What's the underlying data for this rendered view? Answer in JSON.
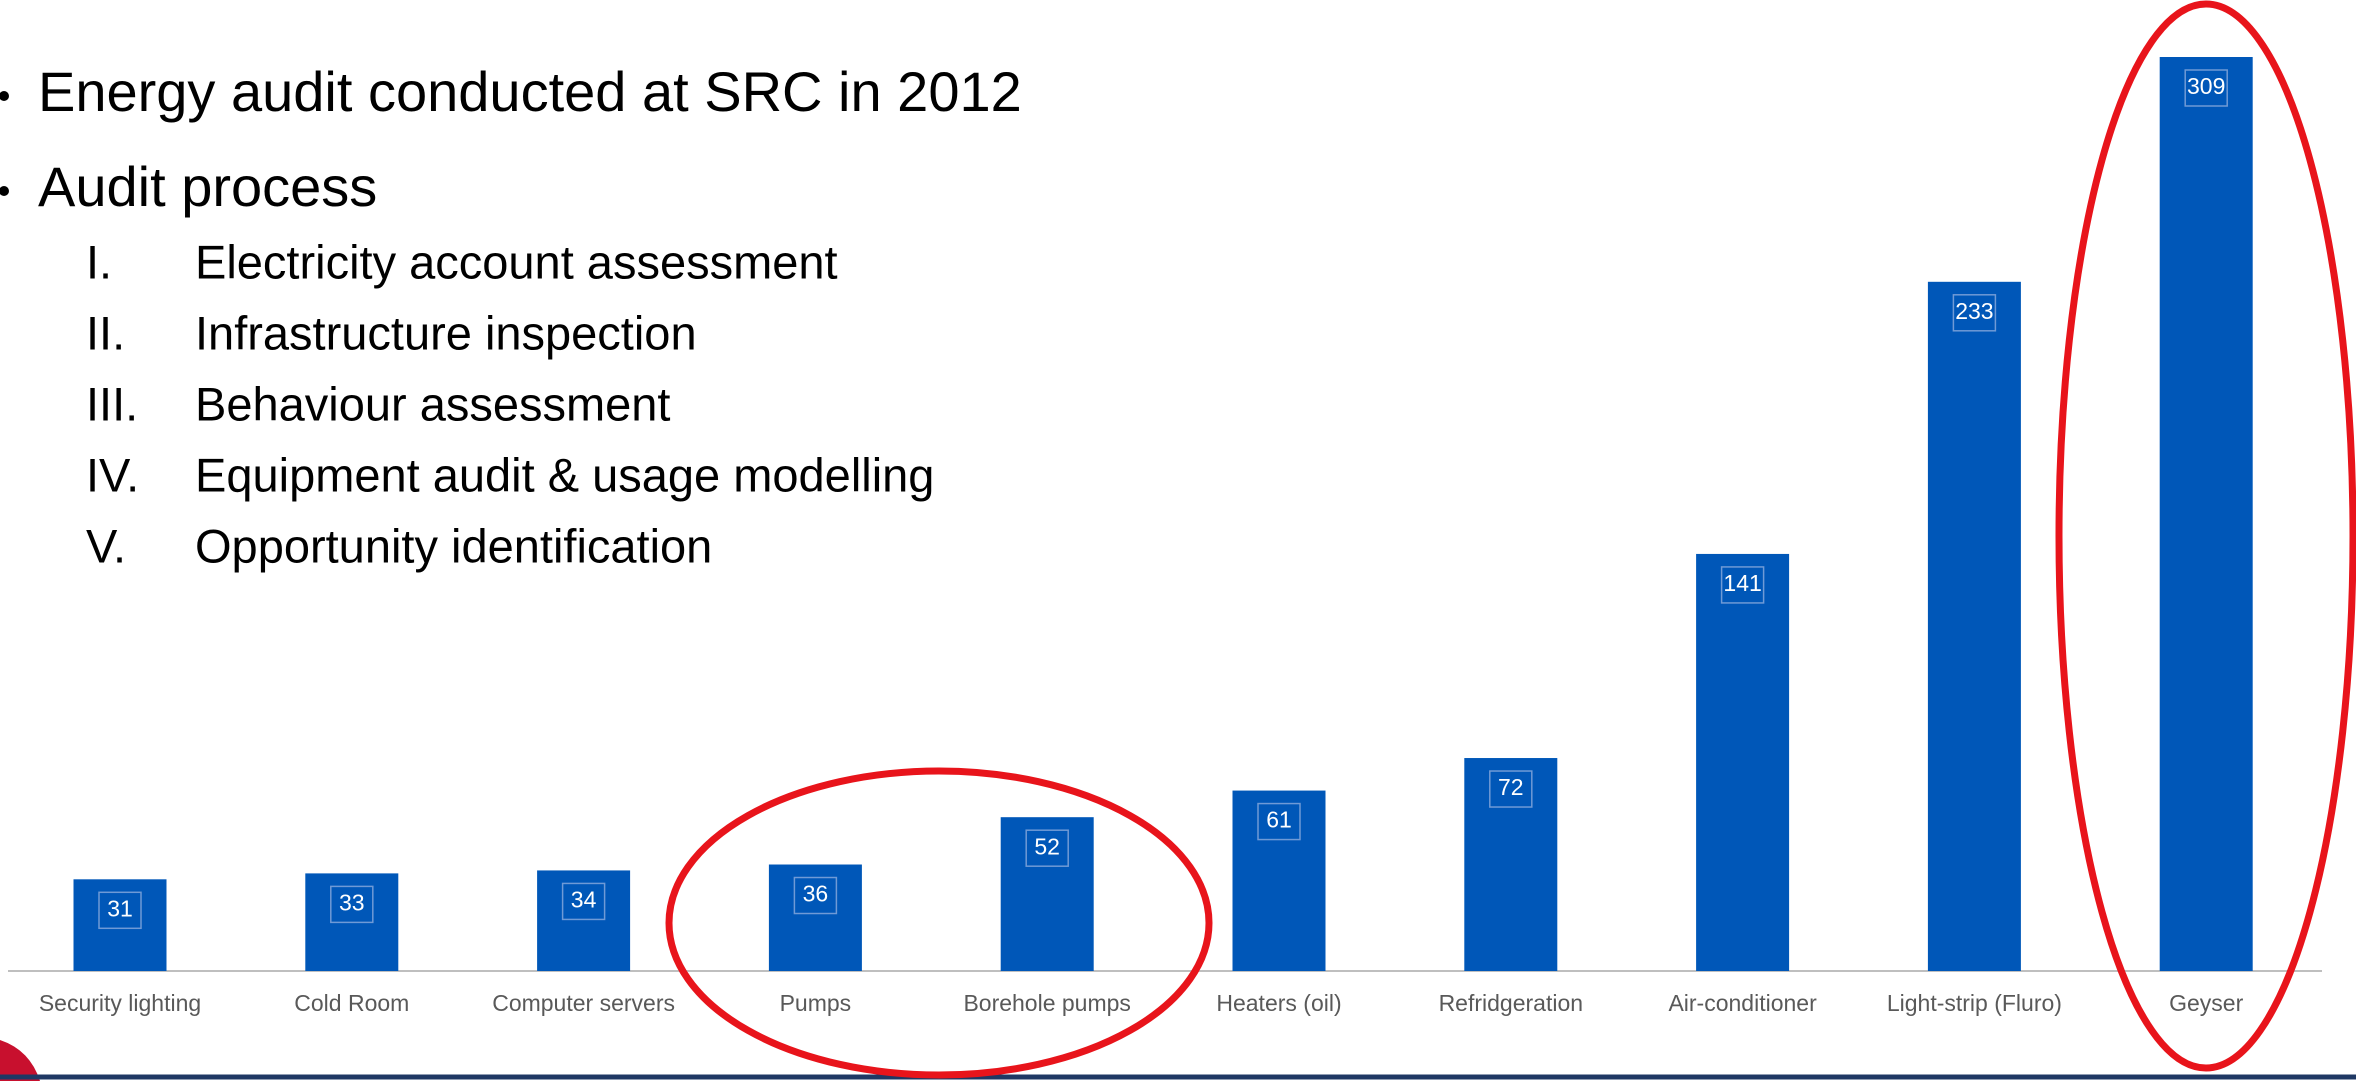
{
  "bullets": [
    {
      "text": "Energy audit conducted at SRC in 2012"
    },
    {
      "text": "Audit process",
      "items": [
        {
          "numeral": "I.",
          "text": "Electricity account assessment"
        },
        {
          "numeral": "II.",
          "text": "Infrastructure inspection"
        },
        {
          "numeral": "III.",
          "text": "Behaviour assessment"
        },
        {
          "numeral": "IV.",
          "text": "Equipment audit & usage modelling"
        },
        {
          "numeral": "V.",
          "text": "Opportunity identification"
        }
      ]
    }
  ],
  "chart_data": {
    "type": "bar",
    "categories": [
      "Security lighting",
      "Cold Room",
      "Computer servers",
      "Pumps",
      "Borehole pumps",
      "Heaters (oil)",
      "Refridgeration",
      "Air-conditioner",
      "Light-strip (Fluro)",
      "Geyser"
    ],
    "values": [
      31,
      33,
      34,
      36,
      52,
      61,
      72,
      141,
      233,
      309
    ],
    "color": "#0057b8",
    "ylim": [
      0,
      309
    ]
  }
}
